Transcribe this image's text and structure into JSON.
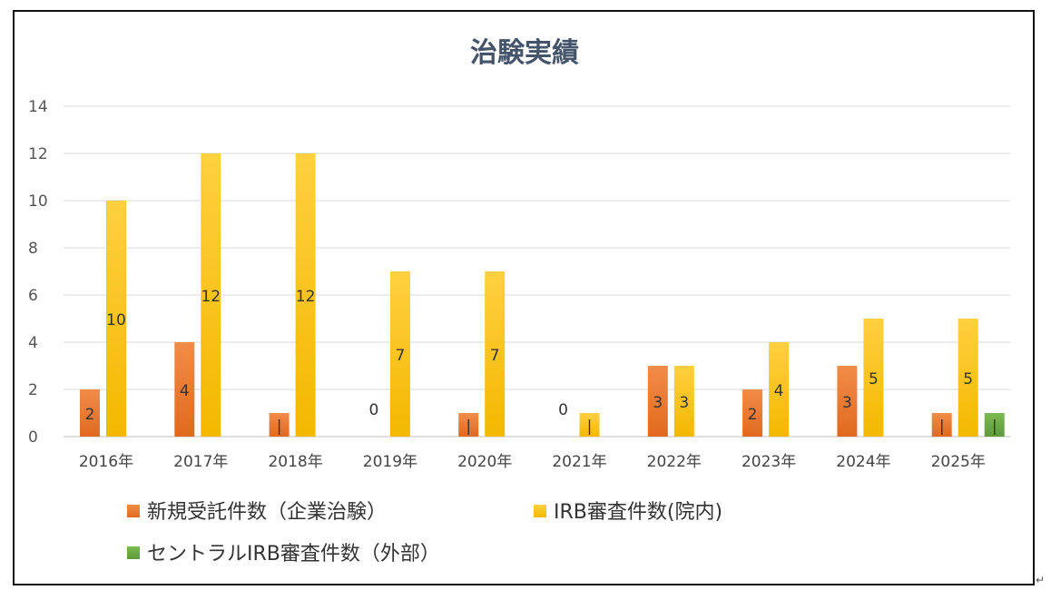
{
  "chart_data": {
    "type": "bar",
    "title": "治験実績",
    "categories": [
      "2016年",
      "2017年",
      "2018年",
      "2019年",
      "2020年",
      "2021年",
      "2022年",
      "2023年",
      "2024年",
      "2025年"
    ],
    "ylim": [
      0,
      14
    ],
    "yticks": [
      0,
      2,
      4,
      6,
      8,
      10,
      12,
      14
    ],
    "grid": true,
    "legend_position": "bottom",
    "series": [
      {
        "name": "新規受託件数（企業治験）",
        "color": "#ee7d31",
        "color_top": "#f28c49",
        "color_bottom": "#e06a1e",
        "values": [
          2,
          4,
          1,
          0,
          1,
          0,
          3,
          2,
          3,
          1
        ],
        "labels": [
          "2",
          "4",
          "|",
          "0",
          "|",
          "0",
          "3",
          "2",
          "3",
          "|"
        ]
      },
      {
        "name": "IRB審査件数(院内)",
        "color": "#ffc000",
        "color_top": "#ffd040",
        "color_bottom": "#f4b800",
        "values": [
          10,
          12,
          12,
          7,
          7,
          1,
          3,
          4,
          5,
          5
        ],
        "labels": [
          "10",
          "12",
          "12",
          "7",
          "7",
          "|",
          "3",
          "4",
          "5",
          "5"
        ]
      },
      {
        "name": "セントラルIRB審査件数（外部）",
        "color": "#70ad47",
        "color_top": "#7cba52",
        "color_bottom": "#5e9a3a",
        "values": [
          null,
          null,
          null,
          null,
          null,
          null,
          null,
          null,
          null,
          1
        ],
        "labels": [
          "",
          "",
          "",
          "",
          "",
          "",
          "",
          "",
          "",
          "|"
        ]
      }
    ]
  }
}
